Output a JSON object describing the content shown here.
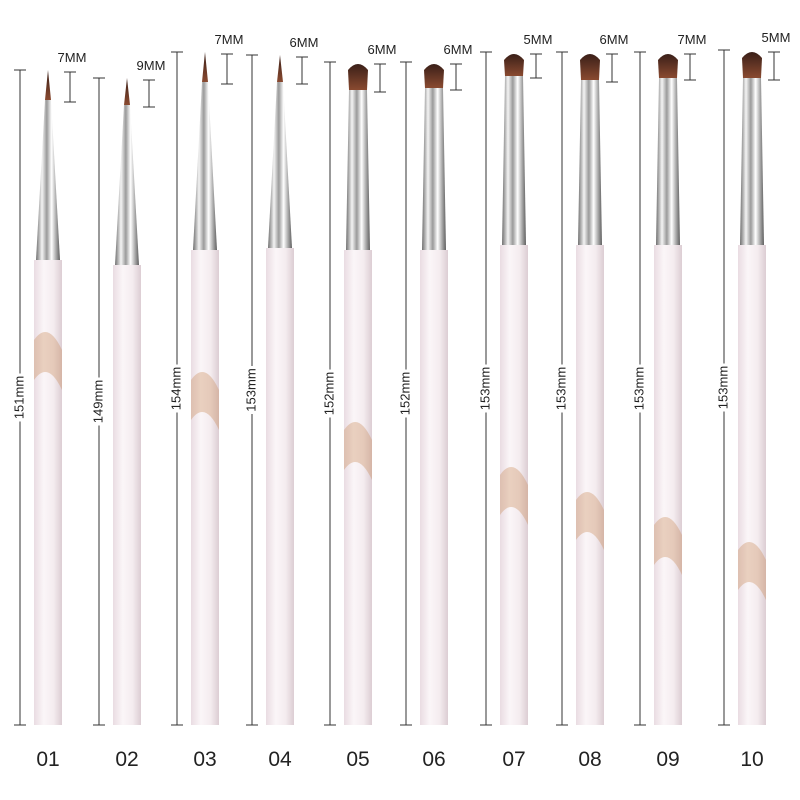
{
  "brushes": [
    {
      "number": "01",
      "length": "151mm",
      "tip": "7MM"
    },
    {
      "number": "02",
      "length": "149mm",
      "tip": "9MM"
    },
    {
      "number": "03",
      "length": "154mm",
      "tip": "7MM"
    },
    {
      "number": "04",
      "length": "153mm",
      "tip": "6MM"
    },
    {
      "number": "05",
      "length": "152mm",
      "tip": "6MM"
    },
    {
      "number": "06",
      "length": "152mm",
      "tip": "6MM"
    },
    {
      "number": "07",
      "length": "153mm",
      "tip": "5MM"
    },
    {
      "number": "08",
      "length": "153mm",
      "tip": "6MM"
    },
    {
      "number": "09",
      "length": "153mm",
      "tip": "7MM"
    },
    {
      "number": "10",
      "length": "153mm",
      "tip": "5MM"
    }
  ]
}
